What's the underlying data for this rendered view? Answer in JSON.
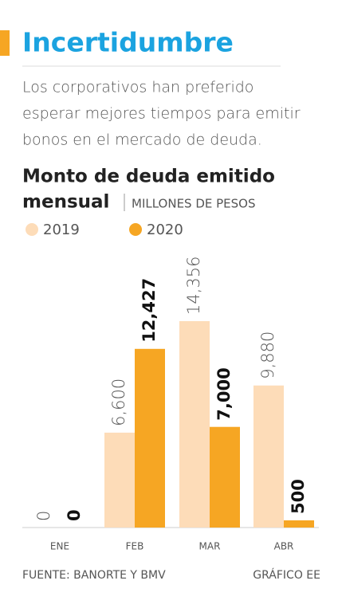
{
  "chart_data": {
    "type": "bar",
    "title": "Incertidumbre",
    "subtitle": [
      "Los corporativos han preferido",
      "esperar mejores tiempos para emitir",
      "bonos en el mercado de deuda."
    ],
    "chart_title": [
      "Monto de deuda emitido",
      "mensual"
    ],
    "unit": "MILLONES DE PESOS",
    "categories": [
      "ENE",
      "FEB",
      "MAR",
      "ABR"
    ],
    "series": [
      {
        "name": "2019",
        "color": "#fddcb8",
        "values": [
          0,
          6600,
          14356,
          9880
        ],
        "value_labels": [
          "0",
          "6,600",
          "14,356",
          "9,880"
        ]
      },
      {
        "name": "2020",
        "color": "#f6a623",
        "values": [
          0,
          12427,
          7000,
          500
        ],
        "value_labels": [
          "0",
          "12,427",
          "7,000",
          "500"
        ]
      }
    ],
    "source": "FUENTE: BANORTE Y BMV",
    "credit": "GRÁFICO EE"
  }
}
